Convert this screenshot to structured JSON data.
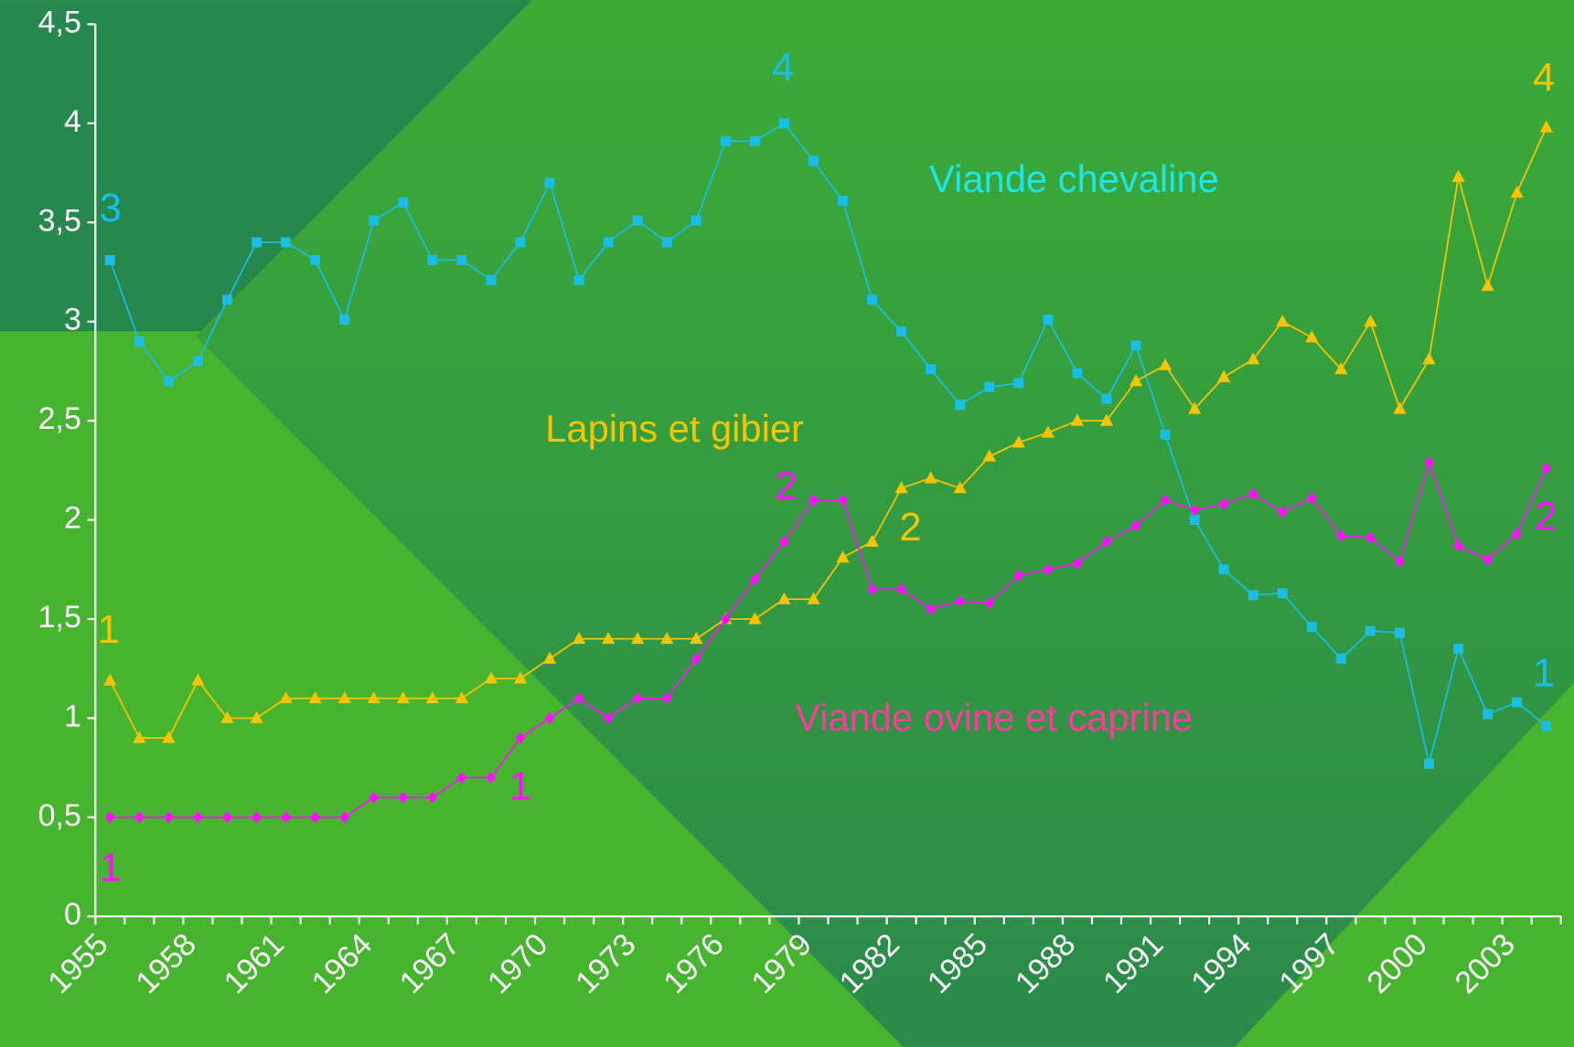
{
  "chart_data": {
    "type": "line",
    "categories": [
      "1955",
      null,
      null,
      "1958",
      null,
      null,
      "1961",
      null,
      null,
      "1964",
      null,
      null,
      "1967",
      null,
      null,
      "1970",
      null,
      null,
      "1973",
      null,
      null,
      "1976",
      null,
      null,
      "1979",
      null,
      null,
      "1982",
      null,
      null,
      "1985",
      null,
      null,
      "1988",
      null,
      null,
      "1991",
      null,
      null,
      "1994",
      null,
      null,
      "1997",
      null,
      null,
      "2000",
      null,
      null,
      "2003",
      null
    ],
    "series": [
      {
        "name": "Viande chevaline",
        "color": "#19bde6",
        "label_color": "#1ee6e6",
        "marker": "square",
        "values": [
          3.31,
          2.9,
          2.7,
          2.8,
          3.11,
          3.4,
          3.4,
          3.31,
          3.01,
          3.51,
          3.6,
          3.31,
          3.31,
          3.21,
          3.4,
          3.7,
          3.21,
          3.4,
          3.51,
          3.4,
          3.51,
          3.91,
          3.91,
          4.0,
          3.81,
          3.61,
          3.11,
          2.95,
          2.76,
          2.58,
          2.67,
          2.69,
          3.01,
          2.74,
          2.61,
          2.88,
          2.43,
          2.0,
          1.75,
          1.62,
          1.63,
          1.46,
          1.3,
          1.44,
          1.43,
          0.77,
          1.35,
          1.02,
          1.08,
          0.96
        ]
      },
      {
        "name": "Lapins et gibier",
        "color": "#f5c400",
        "label_color": "#f5c400",
        "marker": "triangle",
        "values": [
          1.19,
          0.9,
          0.9,
          1.19,
          1.0,
          1.0,
          1.1,
          1.1,
          1.1,
          1.1,
          1.1,
          1.1,
          1.1,
          1.2,
          1.2,
          1.3,
          1.4,
          1.4,
          1.4,
          1.4,
          1.4,
          1.5,
          1.5,
          1.6,
          1.6,
          1.81,
          1.89,
          2.16,
          2.21,
          2.16,
          2.32,
          2.39,
          2.44,
          2.5,
          2.5,
          2.7,
          2.78,
          2.56,
          2.72,
          2.81,
          3.0,
          2.92,
          2.76,
          3.0,
          2.56,
          2.81,
          3.73,
          3.18,
          3.65,
          3.98
        ]
      },
      {
        "name": "Viande ovine et caprine",
        "color": "#ff10ff",
        "label_color": "#ff3ba0",
        "marker": "diamond",
        "values": [
          0.5,
          0.5,
          0.5,
          0.5,
          0.5,
          0.5,
          0.5,
          0.5,
          0.5,
          0.6,
          0.6,
          0.6,
          0.7,
          0.7,
          0.9,
          1.0,
          1.1,
          1.0,
          1.1,
          1.1,
          1.3,
          1.5,
          1.7,
          1.89,
          2.1,
          2.1,
          1.65,
          1.65,
          1.55,
          1.59,
          1.58,
          1.72,
          1.75,
          1.78,
          1.89,
          1.97,
          2.1,
          2.05,
          2.08,
          2.13,
          2.04,
          2.11,
          1.92,
          1.91,
          1.79,
          2.29,
          1.87,
          1.8,
          1.93,
          2.26
        ]
      }
    ],
    "annotations": [
      {
        "text": "3",
        "color": "#19bde6"
      },
      {
        "text": "4",
        "color": "#19bde6"
      },
      {
        "text": "1",
        "color": "#19bde6"
      },
      {
        "text": "1",
        "color": "#f5c400"
      },
      {
        "text": "2",
        "color": "#f5c400"
      },
      {
        "text": "4",
        "color": "#f5c400"
      },
      {
        "text": "1",
        "color": "#ff10ff"
      },
      {
        "text": "1",
        "color": "#ff10ff"
      },
      {
        "text": "2",
        "color": "#ff10ff"
      },
      {
        "text": "2",
        "color": "#ff10ff"
      }
    ],
    "ylim": [
      0,
      4.5
    ],
    "yticks": [
      0,
      {
        "value": 0.5,
        "label": "0,5"
      },
      1,
      {
        "value": 1.5,
        "label": "1,5"
      },
      2,
      {
        "value": 2.5,
        "label": "2,5"
      },
      3,
      {
        "value": 3.5,
        "label": "3,5"
      },
      4,
      {
        "value": 4.5,
        "label": "4,5"
      }
    ],
    "grid": false
  }
}
